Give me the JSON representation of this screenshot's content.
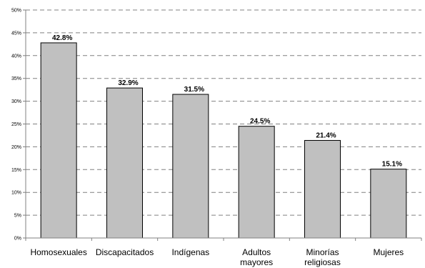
{
  "chart_data": {
    "type": "bar",
    "categories": [
      [
        "Homosexuales"
      ],
      [
        "Discapacitados"
      ],
      [
        "Indígenas"
      ],
      [
        "Adultos",
        "mayores"
      ],
      [
        "Minorías",
        "religiosas"
      ],
      [
        "Mujeres"
      ]
    ],
    "values": [
      42.8,
      32.9,
      31.5,
      24.5,
      21.4,
      15.1
    ],
    "data_labels": [
      "42.8%",
      "32.9%",
      "31.5%",
      "24.5%",
      "21.4%",
      "15.1%"
    ],
    "ylim": [
      0,
      50
    ],
    "ytick_step": 5,
    "ytick_suffix": "%",
    "grid": true,
    "colors": {
      "bar_fill": "#c0c0c0",
      "bar_stroke": "#000000",
      "grid": "#808080",
      "axis": "#808080"
    }
  }
}
